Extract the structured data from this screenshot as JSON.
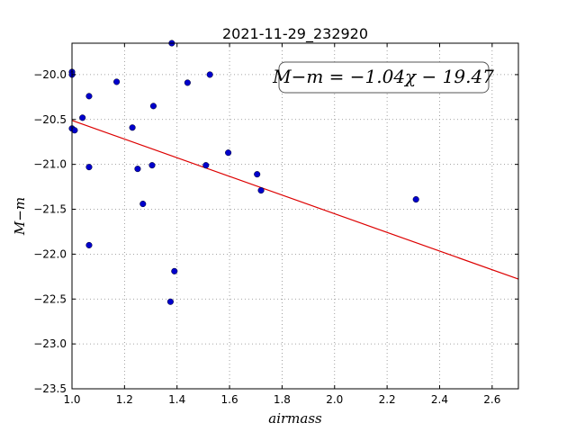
{
  "chart_data": {
    "type": "scatter",
    "title": "2021-11-29_232920",
    "xlabel": "airmass",
    "ylabel": "M−m",
    "xlim": [
      1.0,
      2.7
    ],
    "ylim": [
      -23.5,
      -19.65
    ],
    "y_inverted": true,
    "grid": true,
    "x_ticks": [
      1.0,
      1.2,
      1.4,
      1.6,
      1.8,
      2.0,
      2.2,
      2.4,
      2.6
    ],
    "x_tick_labels": [
      "1.0",
      "1.2",
      "1.4",
      "1.6",
      "1.8",
      "2.0",
      "2.2",
      "2.4",
      "2.6"
    ],
    "y_ticks": [
      -20.0,
      -20.5,
      -21.0,
      -21.5,
      -22.0,
      -22.5,
      -23.0,
      -23.5
    ],
    "y_tick_labels": [
      "−20.0",
      "−20.5",
      "−21.0",
      "−21.5",
      "−22.0",
      "−22.5",
      "−23.0",
      "−23.5"
    ],
    "points": [
      {
        "x": 1.0,
        "y": -19.97
      },
      {
        "x": 1.0,
        "y": -20.0
      },
      {
        "x": 1.0,
        "y": -20.6
      },
      {
        "x": 1.01,
        "y": -20.62
      },
      {
        "x": 1.04,
        "y": -20.48
      },
      {
        "x": 1.065,
        "y": -20.24
      },
      {
        "x": 1.065,
        "y": -21.03
      },
      {
        "x": 1.065,
        "y": -21.9
      },
      {
        "x": 1.17,
        "y": -20.08
      },
      {
        "x": 1.23,
        "y": -20.59
      },
      {
        "x": 1.25,
        "y": -21.05
      },
      {
        "x": 1.27,
        "y": -21.44
      },
      {
        "x": 1.305,
        "y": -21.01
      },
      {
        "x": 1.31,
        "y": -20.35
      },
      {
        "x": 1.38,
        "y": -19.65
      },
      {
        "x": 1.375,
        "y": -22.53
      },
      {
        "x": 1.39,
        "y": -22.19
      },
      {
        "x": 1.44,
        "y": -20.09
      },
      {
        "x": 1.51,
        "y": -21.01
      },
      {
        "x": 1.525,
        "y": -20.0
      },
      {
        "x": 1.595,
        "y": -20.87
      },
      {
        "x": 1.705,
        "y": -21.11
      },
      {
        "x": 1.72,
        "y": -21.29
      },
      {
        "x": 2.31,
        "y": -21.39
      }
    ],
    "fit": {
      "slope": -1.04,
      "intercept": -19.47,
      "x_range": [
        1.0,
        2.7
      ]
    },
    "legend_text": "M−m = −1.04χ − 19.47",
    "legend_placement": "top-right",
    "colors": {
      "points": "#0000cc",
      "fit_line": "#dd0000",
      "grid": "#888888"
    }
  }
}
